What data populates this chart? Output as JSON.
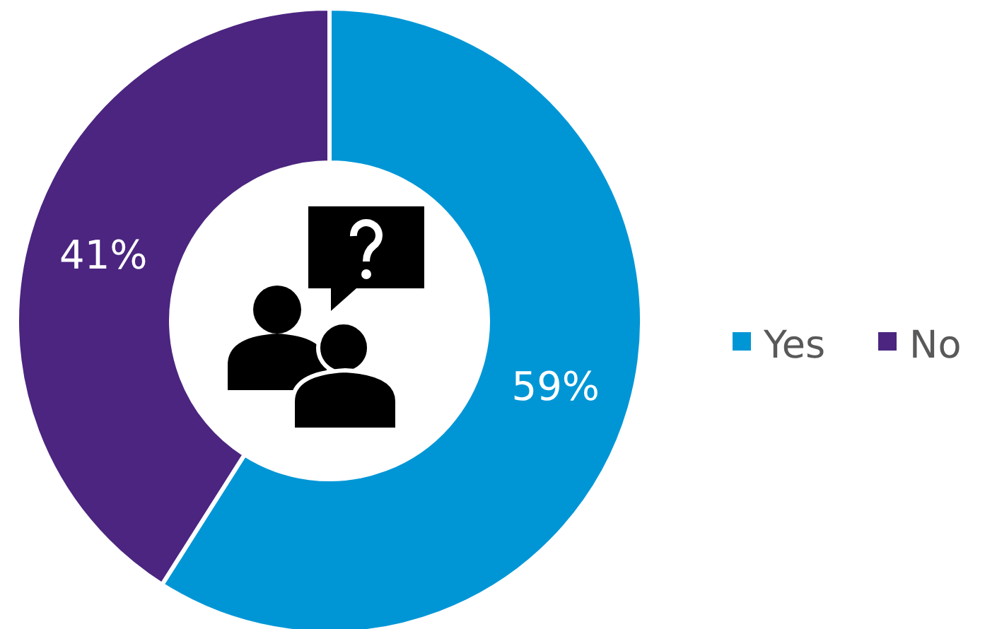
{
  "chart_data": {
    "type": "donut",
    "categories": [
      "Yes",
      "No"
    ],
    "values": [
      59,
      41
    ],
    "colors": [
      "#0096d6",
      "#4b2580"
    ],
    "value_labels": [
      "59%",
      "41%"
    ],
    "legend": "right"
  }
}
